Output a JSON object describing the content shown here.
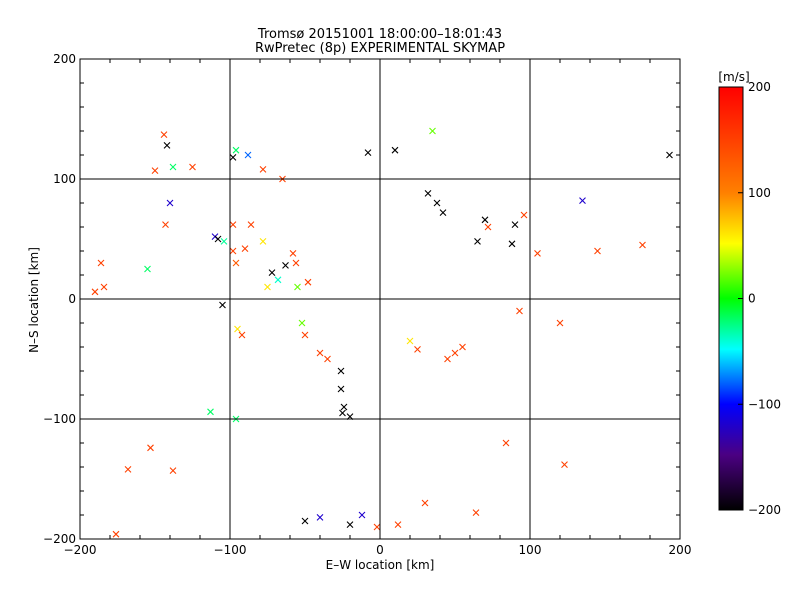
{
  "chart_data": {
    "type": "scatter",
    "title": "Tromsø 20151001 18:00:00–18:01:43",
    "subtitle": "RwPretec (8p) EXPERIMENTAL SKYMAP",
    "xlabel": "E–W location [km]",
    "ylabel": "N–S location [km]",
    "xlim": [
      -200,
      200
    ],
    "ylim": [
      -200,
      200
    ],
    "xticks": [
      "−200",
      "−100",
      "0",
      "100",
      "200"
    ],
    "yticks": [
      "−200",
      "−100",
      "0",
      "100",
      "200"
    ],
    "grid": true,
    "colorbar": {
      "label": "[m/s]",
      "range": [
        -200,
        200
      ],
      "ticks": [
        "200",
        "100",
        "0",
        "−100",
        "−200"
      ],
      "colors": [
        "#ff0000",
        "#ff8000",
        "#ffff00",
        "#00ff00",
        "#00ffff",
        "#0000ff",
        "#4b0082",
        "#000000"
      ]
    },
    "crosses": [
      [
        -144,
        137,
        150
      ],
      [
        -142,
        128,
        -200
      ],
      [
        -138,
        110,
        -20
      ],
      [
        -140,
        80,
        -120
      ],
      [
        -143,
        62,
        150
      ],
      [
        -98,
        118,
        -200
      ],
      [
        -96,
        124,
        -20
      ],
      [
        -88,
        120,
        -80
      ],
      [
        -78,
        108,
        150
      ],
      [
        -65,
        100,
        150
      ],
      [
        -125,
        110,
        150
      ],
      [
        -150,
        107,
        150
      ],
      [
        -98,
        62,
        150
      ],
      [
        -110,
        52,
        -120
      ],
      [
        -108,
        50,
        -200
      ],
      [
        -104,
        48,
        -30
      ],
      [
        -98,
        40,
        150
      ],
      [
        -96,
        30,
        130
      ],
      [
        -90,
        42,
        150
      ],
      [
        -86,
        62,
        150
      ],
      [
        -78,
        48,
        60
      ],
      [
        -72,
        22,
        -200
      ],
      [
        -68,
        16,
        -40
      ],
      [
        -75,
        10,
        60
      ],
      [
        -58,
        38,
        150
      ],
      [
        -63,
        28,
        -200
      ],
      [
        -56,
        30,
        150
      ],
      [
        -48,
        14,
        150
      ],
      [
        -105,
        -5,
        -200
      ],
      [
        -95,
        -25,
        60
      ],
      [
        -92,
        -30,
        150
      ],
      [
        -55,
        10,
        20
      ],
      [
        -52,
        -20,
        20
      ],
      [
        -50,
        -30,
        150
      ],
      [
        -40,
        -45,
        150
      ],
      [
        -35,
        -50,
        150
      ],
      [
        -26,
        -60,
        -200
      ],
      [
        -26,
        -75,
        -200
      ],
      [
        -24,
        -90,
        -200
      ],
      [
        -20,
        -98,
        -200
      ],
      [
        -25,
        -95,
        -200
      ],
      [
        -50,
        -185,
        -200
      ],
      [
        -40,
        -182,
        -120
      ],
      [
        -20,
        -188,
        -200
      ],
      [
        -12,
        -180,
        -120
      ],
      [
        -176,
        -196,
        150
      ],
      [
        -184,
        10,
        150
      ],
      [
        -186,
        30,
        150
      ],
      [
        -190,
        6,
        150
      ],
      [
        -155,
        25,
        -20
      ],
      [
        -168,
        -142,
        150
      ],
      [
        -153,
        -124,
        150
      ],
      [
        -138,
        -143,
        150
      ],
      [
        -113,
        -94,
        -20
      ],
      [
        -96,
        -100,
        -20
      ],
      [
        -8,
        122,
        -200
      ],
      [
        10,
        124,
        -200
      ],
      [
        20,
        -35,
        60
      ],
      [
        25,
        -42,
        150
      ],
      [
        45,
        -50,
        150
      ],
      [
        50,
        -45,
        150
      ],
      [
        55,
        -40,
        150
      ],
      [
        -2,
        -190,
        150
      ],
      [
        12,
        -188,
        150
      ],
      [
        30,
        -170,
        150
      ],
      [
        64,
        -178,
        150
      ],
      [
        84,
        -120,
        150
      ],
      [
        123,
        -138,
        150
      ],
      [
        32,
        88,
        -200
      ],
      [
        38,
        80,
        -200
      ],
      [
        65,
        48,
        -200
      ],
      [
        72,
        60,
        150
      ],
      [
        90,
        62,
        -200
      ],
      [
        96,
        70,
        150
      ],
      [
        105,
        38,
        150
      ],
      [
        120,
        -20,
        150
      ],
      [
        88,
        46,
        -200
      ],
      [
        93,
        -10,
        150
      ],
      [
        135,
        82,
        -120
      ],
      [
        145,
        40,
        150
      ],
      [
        175,
        45,
        150
      ],
      [
        193,
        120,
        -200
      ],
      [
        42,
        72,
        -200
      ],
      [
        70,
        66,
        -200
      ],
      [
        35,
        140,
        20
      ]
    ]
  }
}
